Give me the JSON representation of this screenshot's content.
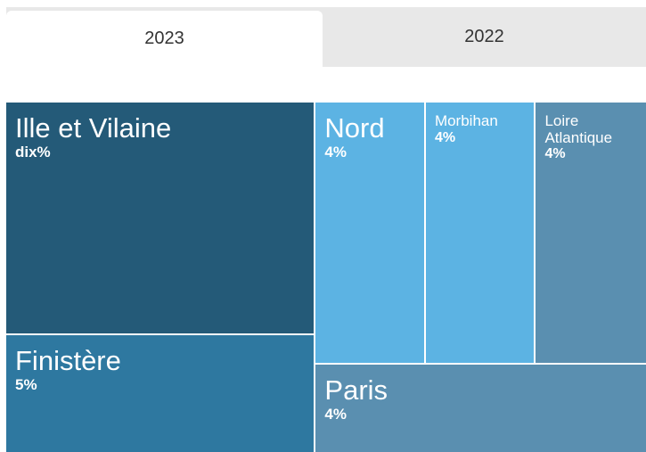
{
  "tabs": [
    "2023",
    "2022"
  ],
  "chart_data": {
    "type": "treemap",
    "categories": [
      "Ille et Vilaine",
      "Finistère",
      "Nord",
      "Morbihan",
      "Loire Atlantique",
      "Paris"
    ],
    "values": [
      10,
      5,
      4,
      4,
      4,
      4
    ],
    "value_labels": [
      "dix%",
      "5%",
      "4%",
      "4%",
      "4%",
      "4%"
    ],
    "colors": [
      "#245a78",
      "#2e78a0",
      "#5cb3e3",
      "#5cb3e3",
      "#5a8fb0",
      "#5a8fb0"
    ]
  }
}
